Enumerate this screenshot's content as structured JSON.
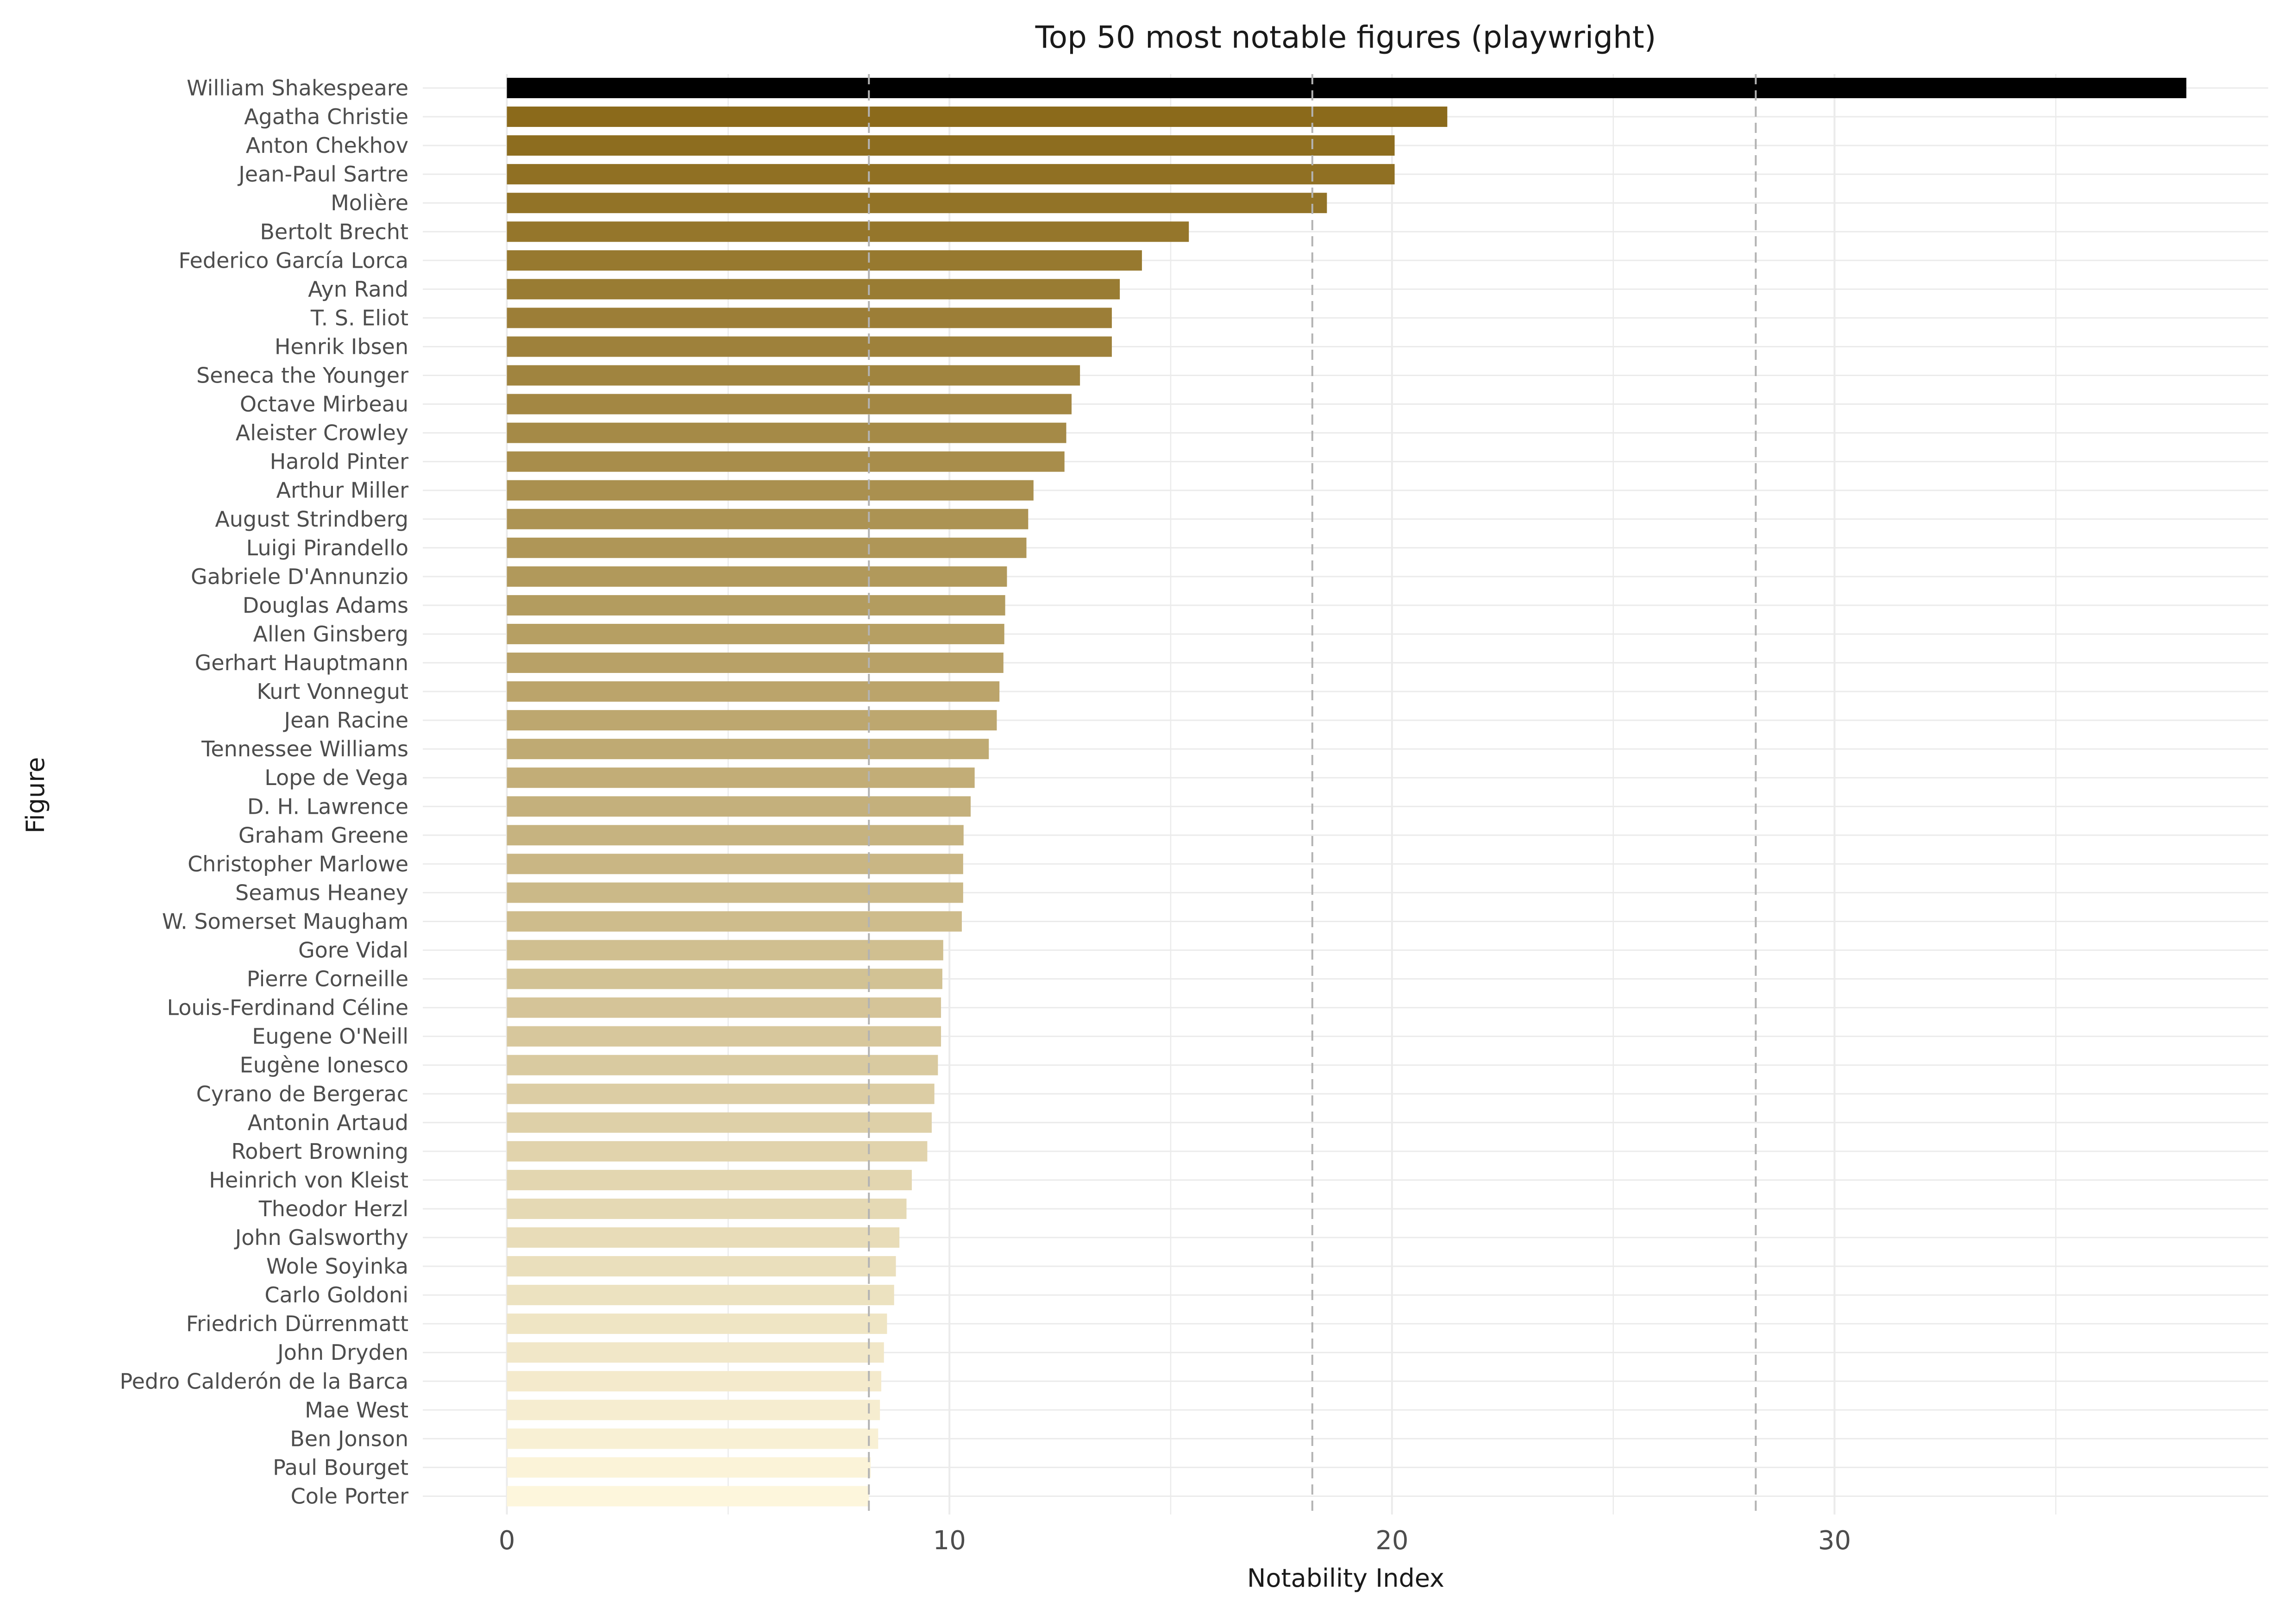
{
  "chart_data": {
    "type": "bar",
    "orientation": "horizontal",
    "title": "Top 50 most notable figures (playwright)",
    "xlabel": "Notability Index",
    "ylabel": "Figure",
    "xlim": [
      -1.9,
      39.8
    ],
    "xticks": [
      0,
      10,
      20,
      30
    ],
    "grid": true,
    "reference_lines": [
      8.18,
      18.2,
      28.22
    ],
    "categories": [
      "William Shakespeare",
      "Agatha Christie",
      "Anton Chekhov",
      "Jean-Paul Sartre",
      "Molière",
      "Bertolt Brecht",
      "Federico García Lorca",
      "Ayn Rand",
      "T. S. Eliot",
      "Henrik Ibsen",
      "Seneca the Younger",
      "Octave Mirbeau",
      "Aleister Crowley",
      "Harold Pinter",
      "Arthur Miller",
      "August Strindberg",
      "Luigi Pirandello",
      "Gabriele D'Annunzio",
      "Douglas Adams",
      "Allen Ginsberg",
      "Gerhart Hauptmann",
      "Kurt Vonnegut",
      "Jean Racine",
      "Tennessee Williams",
      "Lope de Vega",
      "D. H. Lawrence",
      "Graham Greene",
      "Christopher Marlowe",
      "Seamus Heaney",
      "W. Somerset Maugham",
      "Gore Vidal",
      "Pierre Corneille",
      "Louis-Ferdinand Céline",
      "Eugene O'Neill",
      "Eugène Ionesco",
      "Cyrano de Bergerac",
      "Antonin Artaud",
      "Robert Browning",
      "Heinrich von Kleist",
      "Theodor Herzl",
      "John Galsworthy",
      "Wole Soyinka",
      "Carlo Goldoni",
      "Friedrich Dürrenmatt",
      "John Dryden",
      "Pedro Calderón de la Barca",
      "Mae West",
      "Ben Jonson",
      "Paul Bourget",
      "Cole Porter"
    ],
    "values": [
      37.95,
      21.25,
      20.06,
      20.06,
      18.53,
      15.41,
      14.35,
      13.85,
      13.67,
      13.67,
      12.95,
      12.76,
      12.64,
      12.6,
      11.9,
      11.78,
      11.74,
      11.3,
      11.26,
      11.24,
      11.22,
      11.13,
      11.07,
      10.89,
      10.57,
      10.48,
      10.32,
      10.31,
      10.31,
      10.28,
      9.86,
      9.84,
      9.81,
      9.81,
      9.74,
      9.66,
      9.6,
      9.5,
      9.15,
      9.03,
      8.87,
      8.79,
      8.75,
      8.59,
      8.52,
      8.46,
      8.43,
      8.39,
      8.22,
      8.18
    ],
    "colors": {
      "top_bar": "#000000",
      "gradient_dark": "#8b6a1b",
      "gradient_light": "#fdf6dc",
      "grid": "#ebebeb",
      "reference_line": "#b3b3b3"
    }
  }
}
